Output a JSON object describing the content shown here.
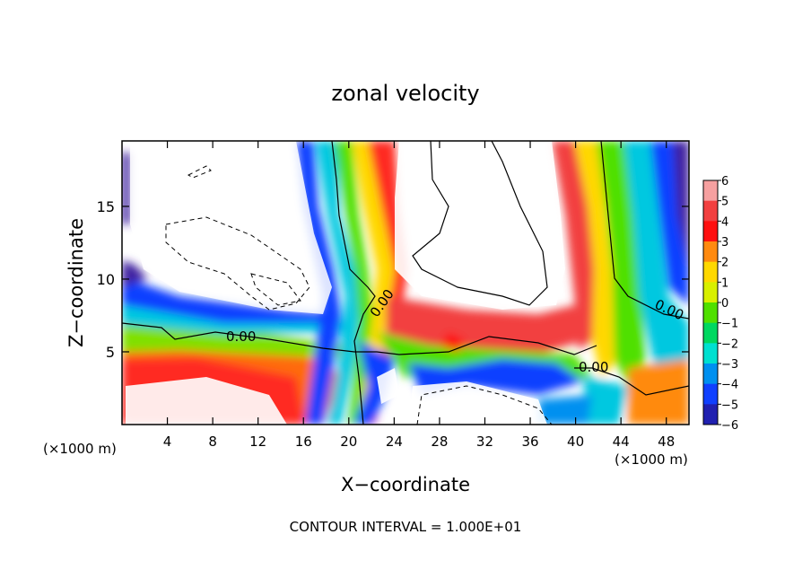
{
  "chart_data": {
    "type": "heatmap",
    "title": "zonal velocity",
    "xlabel": "X−coordinate",
    "ylabel": "Z−coordinate",
    "x_unit_label_left": "(×1000 m)",
    "x_unit_label_right": "(×1000 m)",
    "xlim": [
      0,
      50
    ],
    "ylim": [
      0,
      19.5
    ],
    "x_ticks": [
      4,
      8,
      12,
      16,
      20,
      24,
      28,
      32,
      36,
      40,
      44,
      48
    ],
    "y_ticks": [
      5,
      10,
      15
    ],
    "colorbar": {
      "levels": [
        6,
        5,
        4,
        3,
        2,
        1,
        0,
        -1,
        -2,
        -3,
        -4,
        -5,
        -6
      ],
      "labels": [
        "6",
        "5",
        "4",
        "3",
        "2",
        "1",
        "0",
        "−1",
        "−2",
        "−3",
        "−4",
        "−5",
        "−6"
      ],
      "colors": [
        "#f6a0a0",
        "#f24040",
        "#ff1010",
        "#ff8a10",
        "#ffd800",
        "#d8f000",
        "#50e000",
        "#00d860",
        "#00e0d0",
        "#0090f0",
        "#1040ff",
        "#2020b0",
        "#6010a0"
      ]
    },
    "contour_labels": [
      "0.00",
      "0.00",
      "0.00",
      "0.00"
    ],
    "grid": false,
    "legend": "colorbar-right"
  },
  "footer": {
    "contour_interval": "CONTOUR INTERVAL =  1.000E+01"
  }
}
